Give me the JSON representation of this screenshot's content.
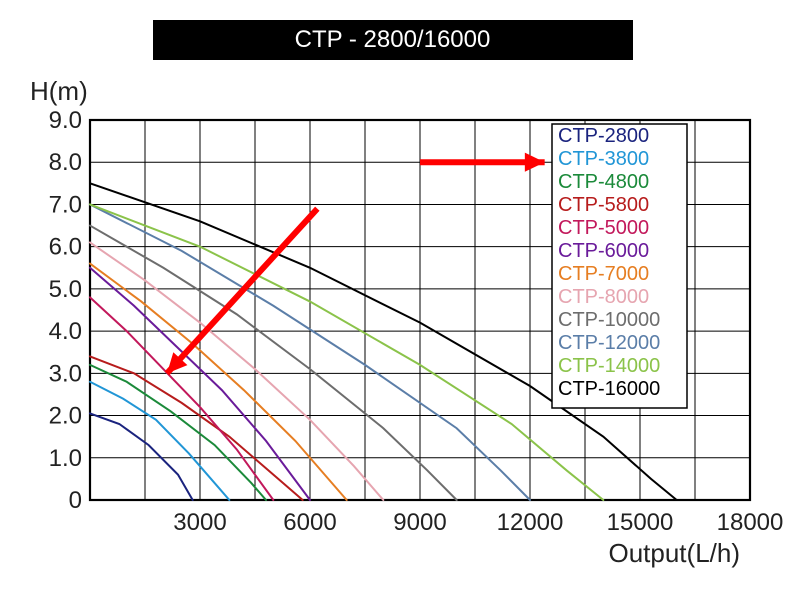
{
  "title": "CTP - 2800/16000",
  "y_axis_label": "H(m)",
  "x_axis_label": "Output(L/h)",
  "chart": {
    "type": "line",
    "xlim": [
      0,
      18000
    ],
    "ylim": [
      0,
      9.0
    ],
    "xticks": [
      3000,
      6000,
      9000,
      12000,
      15000,
      18000
    ],
    "yticks": [
      0,
      1.0,
      2.0,
      3.0,
      4.0,
      5.0,
      6.0,
      7.0,
      8.0,
      9.0
    ],
    "xtick_labels": [
      "3000",
      "6000",
      "9000",
      "12000",
      "15000",
      "18000"
    ],
    "ytick_labels": [
      "0",
      "1.0",
      "2.0",
      "3.0",
      "4.0",
      "5.0",
      "6.0",
      "7.0",
      "8.0",
      "9.0"
    ],
    "grid_color": "#000000",
    "grid_width": 1,
    "background_color": "#ffffff",
    "plot_border_width": 2.2,
    "line_width": 2.0,
    "series": [
      {
        "name": "CTP-2800",
        "color": "#1a237e",
        "points": [
          [
            0,
            2.05
          ],
          [
            800,
            1.8
          ],
          [
            1600,
            1.3
          ],
          [
            2400,
            0.6
          ],
          [
            2800,
            0
          ]
        ]
      },
      {
        "name": "CTP-3800",
        "color": "#2196d6",
        "points": [
          [
            0,
            2.8
          ],
          [
            900,
            2.4
          ],
          [
            1800,
            1.9
          ],
          [
            2700,
            1.1
          ],
          [
            3500,
            0.3
          ],
          [
            3800,
            0
          ]
        ]
      },
      {
        "name": "CTP-4800",
        "color": "#1b8a3a",
        "points": [
          [
            0,
            3.2
          ],
          [
            1000,
            2.8
          ],
          [
            2200,
            2.1
          ],
          [
            3400,
            1.3
          ],
          [
            4400,
            0.4
          ],
          [
            4800,
            0
          ]
        ]
      },
      {
        "name": "CTP-5800",
        "color": "#b71c1c",
        "points": [
          [
            0,
            3.4
          ],
          [
            1200,
            3.0
          ],
          [
            2500,
            2.3
          ],
          [
            3800,
            1.5
          ],
          [
            5000,
            0.6
          ],
          [
            5800,
            0
          ]
        ]
      },
      {
        "name": "CTP-5000",
        "color": "#c2185b",
        "points": [
          [
            0,
            4.8
          ],
          [
            1000,
            4.0
          ],
          [
            2000,
            3.1
          ],
          [
            3000,
            2.2
          ],
          [
            4000,
            1.2
          ],
          [
            5000,
            0
          ]
        ]
      },
      {
        "name": "CTP-6000",
        "color": "#6a1b9a",
        "points": [
          [
            0,
            5.5
          ],
          [
            1200,
            4.6
          ],
          [
            2400,
            3.6
          ],
          [
            3600,
            2.6
          ],
          [
            4800,
            1.4
          ],
          [
            6000,
            0
          ]
        ]
      },
      {
        "name": "CTP-7000",
        "color": "#e67e22",
        "points": [
          [
            0,
            5.6
          ],
          [
            1400,
            4.7
          ],
          [
            2800,
            3.7
          ],
          [
            4200,
            2.6
          ],
          [
            5600,
            1.4
          ],
          [
            7000,
            0
          ]
        ]
      },
      {
        "name": "CTP-8000",
        "color": "#e6a5b0",
        "points": [
          [
            0,
            6.1
          ],
          [
            1500,
            5.2
          ],
          [
            3000,
            4.2
          ],
          [
            4500,
            3.1
          ],
          [
            6000,
            1.9
          ],
          [
            7200,
            0.8
          ],
          [
            8000,
            0
          ]
        ]
      },
      {
        "name": "CTP-10000",
        "color": "#6d6d6d",
        "points": [
          [
            0,
            6.5
          ],
          [
            2000,
            5.5
          ],
          [
            4000,
            4.4
          ],
          [
            6000,
            3.1
          ],
          [
            8000,
            1.7
          ],
          [
            9200,
            0.7
          ],
          [
            10000,
            0
          ]
        ]
      },
      {
        "name": "CTP-12000",
        "color": "#5b7ea8",
        "points": [
          [
            0,
            7.0
          ],
          [
            2500,
            5.9
          ],
          [
            5000,
            4.6
          ],
          [
            7500,
            3.2
          ],
          [
            10000,
            1.7
          ],
          [
            11200,
            0.7
          ],
          [
            12000,
            0
          ]
        ]
      },
      {
        "name": "CTP-14000",
        "color": "#8bc34a",
        "points": [
          [
            0,
            7.0
          ],
          [
            3000,
            6.0
          ],
          [
            6000,
            4.7
          ],
          [
            9000,
            3.2
          ],
          [
            11500,
            1.8
          ],
          [
            13000,
            0.7
          ],
          [
            14000,
            0
          ]
        ]
      },
      {
        "name": "CTP-16000",
        "color": "#000000",
        "points": [
          [
            0,
            7.5
          ],
          [
            3000,
            6.6
          ],
          [
            6000,
            5.5
          ],
          [
            9000,
            4.2
          ],
          [
            12000,
            2.7
          ],
          [
            14000,
            1.5
          ],
          [
            15300,
            0.5
          ],
          [
            16000,
            0
          ]
        ]
      }
    ],
    "legend": {
      "border_color": "#000000",
      "bg_color": "#ffffff",
      "font_size": 20
    },
    "arrows": [
      {
        "from": [
          6200,
          6.9
        ],
        "to": [
          2100,
          3.0
        ],
        "color": "#ff0000",
        "width": 6,
        "head": 22
      },
      {
        "from": [
          9000,
          8.0
        ],
        "to": [
          12400,
          8.0
        ],
        "color": "#ff0000",
        "width": 6,
        "head": 22
      }
    ]
  }
}
